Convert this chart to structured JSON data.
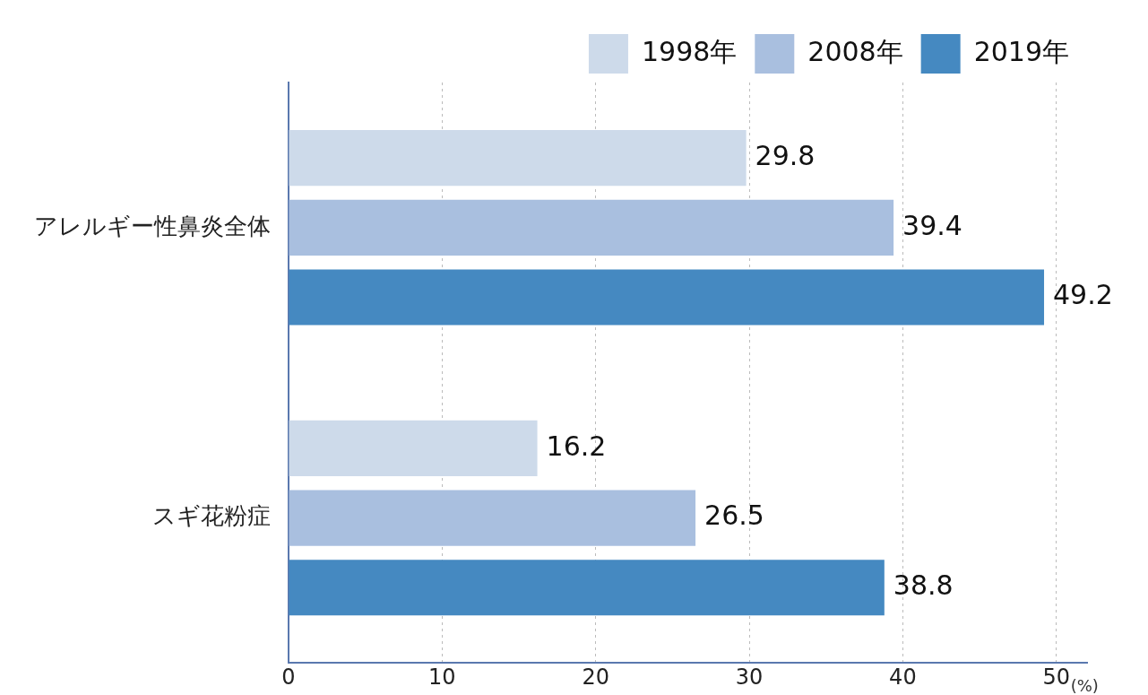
{
  "chart_data": {
    "type": "bar",
    "orientation": "horizontal",
    "xlabel": "(%)",
    "categories": [
      "アレルギー性鼻炎全体",
      "スギ花粉症"
    ],
    "series": [
      {
        "name": "1998年",
        "color": "#cddaea",
        "values": [
          29.8,
          16.2
        ]
      },
      {
        "name": "2008年",
        "color": "#a9bfdf",
        "values": [
          39.4,
          26.5
        ]
      },
      {
        "name": "2019年",
        "color": "#4589c1",
        "values": [
          49.2,
          38.8
        ]
      }
    ],
    "xlim": [
      0,
      52
    ],
    "xticks": [
      0,
      10,
      20,
      30,
      40,
      50
    ],
    "grid": "x",
    "legend": "top right",
    "data_labels": true
  }
}
